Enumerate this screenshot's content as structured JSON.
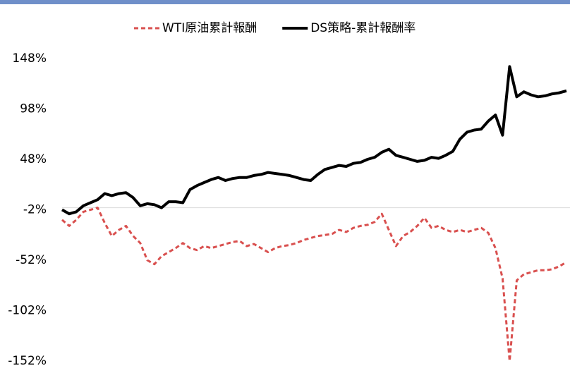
{
  "chart_data": {
    "type": "line",
    "series": [
      {
        "name": "WTI原油累計報酬",
        "color": "#d9504f",
        "dash": true,
        "values": [
          -12,
          -18,
          -12,
          -4,
          -2,
          0,
          -15,
          -28,
          -22,
          -18,
          -28,
          -35,
          -52,
          -56,
          -48,
          -44,
          -40,
          -35,
          -40,
          -42,
          -38,
          -40,
          -38,
          -36,
          -34,
          -33,
          -38,
          -36,
          -40,
          -44,
          -40,
          -38,
          -37,
          -35,
          -32,
          -30,
          -28,
          -27,
          -26,
          -22,
          -24,
          -20,
          -18,
          -17,
          -14,
          -6,
          -22,
          -38,
          -28,
          -24,
          -18,
          -10,
          -20,
          -18,
          -22,
          -24,
          -22,
          -24,
          -22,
          -20,
          -25,
          -40,
          -70,
          -152,
          -72,
          -66,
          -64,
          -62,
          -62,
          -61,
          -58,
          -54
        ]
      },
      {
        "name": "DS策略-累計報酬率",
        "color": "#000000",
        "dash": false,
        "values": [
          -2,
          -6,
          -4,
          2,
          5,
          8,
          14,
          12,
          14,
          15,
          10,
          2,
          4,
          3,
          0,
          6,
          6,
          5,
          18,
          22,
          25,
          28,
          30,
          27,
          29,
          30,
          30,
          32,
          33,
          35,
          34,
          33,
          32,
          30,
          28,
          27,
          33,
          38,
          40,
          42,
          41,
          44,
          45,
          48,
          50,
          55,
          58,
          52,
          50,
          48,
          46,
          47,
          50,
          49,
          52,
          56,
          68,
          75,
          77,
          78,
          86,
          92,
          72,
          140,
          110,
          115,
          112,
          110,
          111,
          113,
          114,
          116
        ]
      }
    ],
    "ylim": [
      -152,
      148
    ],
    "yticks": [
      {
        "value": 148,
        "label": "148%"
      },
      {
        "value": 98,
        "label": "98%"
      },
      {
        "value": 48,
        "label": "48%"
      },
      {
        "value": -2,
        "label": "-2%"
      },
      {
        "value": -52,
        "label": "-52%"
      },
      {
        "value": -102,
        "label": "-102%"
      },
      {
        "value": -152,
        "label": "-152%"
      }
    ],
    "grid": false,
    "legend": "top"
  }
}
